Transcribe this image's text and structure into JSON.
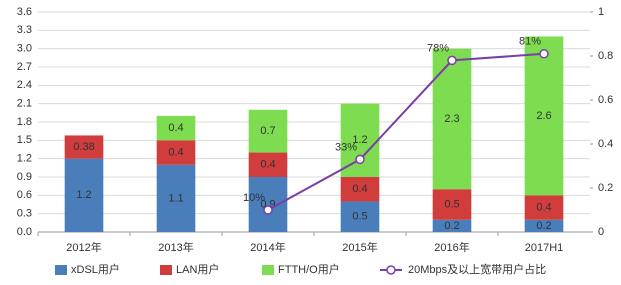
{
  "chart_data": {
    "type": "bar",
    "stacked": true,
    "categories": [
      "2012年",
      "2013年",
      "2014年",
      "2015年",
      "2016年",
      "2017H1"
    ],
    "series": [
      {
        "name": "xDSL用户",
        "color": "#4a7ebb",
        "values": [
          1.2,
          1.1,
          0.9,
          0.5,
          0.2,
          0.2
        ]
      },
      {
        "name": "LAN用户",
        "color": "#d13c3c",
        "values": [
          0.38,
          0.4,
          0.4,
          0.4,
          0.5,
          0.4
        ]
      },
      {
        "name": "FTTH/O用户",
        "color": "#7ddc4f",
        "values": [
          null,
          0.4,
          0.7,
          1.2,
          2.3,
          2.6
        ]
      },
      {
        "name": "20Mbps及以上宽带用户占比",
        "color": "#7a3fa8",
        "type": "line",
        "axis": "y2",
        "values": [
          null,
          null,
          0.1,
          0.33,
          0.78,
          0.81
        ],
        "value_labels": [
          null,
          null,
          "10%",
          "33%",
          "78%",
          "81%"
        ]
      }
    ],
    "ylim": [
      0,
      3.6
    ],
    "yticks": [
      {
        "value": 0,
        "label": "0.0"
      },
      0.3,
      0.6,
      0.9,
      1.2,
      1.5,
      1.8,
      2.1,
      2.4,
      2.7,
      {
        "value": 3,
        "label": "3.0"
      },
      3.3,
      3.6
    ],
    "y2lim": [
      0,
      1
    ],
    "y2ticks": [
      0,
      0.2,
      0.4,
      0.6,
      0.8,
      1
    ],
    "grid": true,
    "legend": "bottom"
  }
}
